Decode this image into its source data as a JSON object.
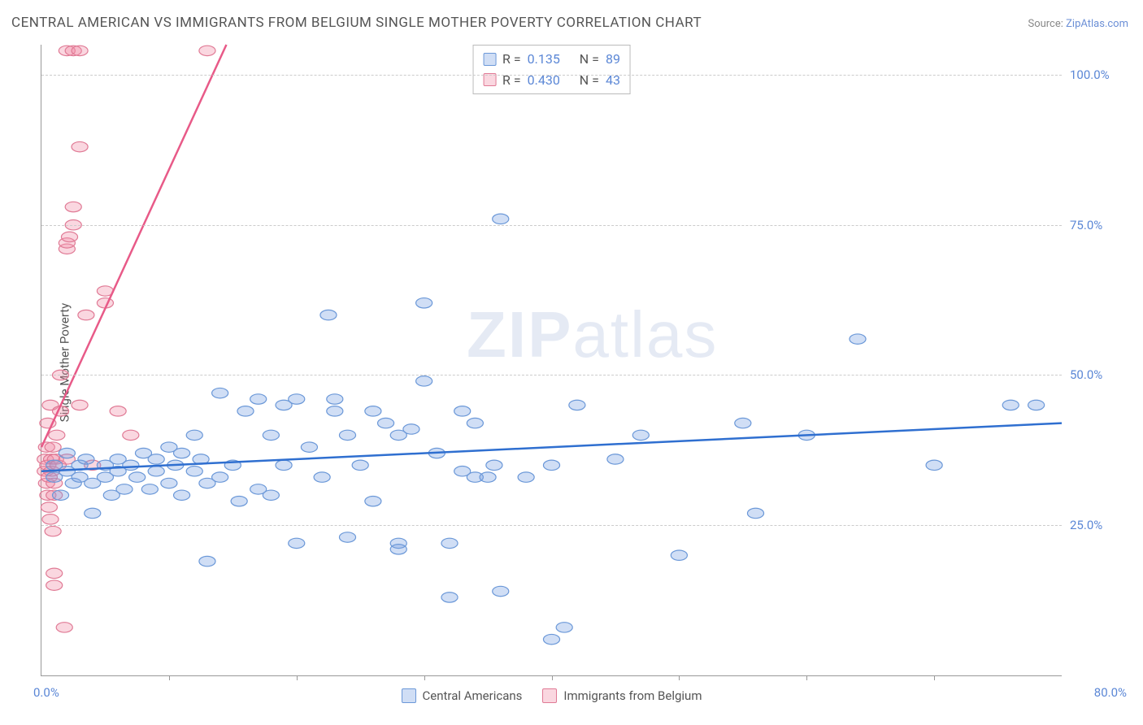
{
  "title": "CENTRAL AMERICAN VS IMMIGRANTS FROM BELGIUM SINGLE MOTHER POVERTY CORRELATION CHART",
  "source_prefix": "Source: ",
  "source_name": "ZipAtlas.com",
  "ylabel": "Single Mother Poverty",
  "watermark_bold": "ZIP",
  "watermark_light": "atlas",
  "chart": {
    "type": "scatter",
    "xlim": [
      0,
      80
    ],
    "ylim": [
      0,
      105
    ],
    "x_tick_start": "0.0%",
    "x_tick_end": "80.0%",
    "x_minor_ticks_pct": [
      10,
      20,
      30,
      40,
      50,
      60,
      70
    ],
    "y_ticks": [
      {
        "value": 25,
        "label": "25.0%"
      },
      {
        "value": 50,
        "label": "50.0%"
      },
      {
        "value": 75,
        "label": "75.0%"
      },
      {
        "value": 100,
        "label": "100.0%"
      }
    ],
    "grid_color": "#cccccc",
    "axis_color": "#999999",
    "background_color": "#ffffff",
    "tick_label_color": "#5b87d6",
    "marker_radius": 8,
    "marker_stroke_width": 1.2,
    "trend_line_width": 2.5,
    "series": [
      {
        "name": "Central Americans",
        "fill": "rgba(120,160,225,0.35)",
        "stroke": "#6b98d8",
        "line_color": "#2f6fd0",
        "trend": {
          "x1": 0,
          "y1": 34,
          "x2": 80,
          "y2": 42
        },
        "stats": {
          "R_label": "R = ",
          "R": "0.135",
          "N_label": "N = ",
          "N": "89"
        },
        "points": [
          [
            1,
            33
          ],
          [
            1,
            35
          ],
          [
            1.5,
            30
          ],
          [
            2,
            34
          ],
          [
            2,
            37
          ],
          [
            2.5,
            32
          ],
          [
            3,
            35
          ],
          [
            3,
            33
          ],
          [
            3.5,
            36
          ],
          [
            4,
            32
          ],
          [
            4,
            27
          ],
          [
            5,
            33
          ],
          [
            5,
            35
          ],
          [
            5.5,
            30
          ],
          [
            6,
            34
          ],
          [
            6,
            36
          ],
          [
            6.5,
            31
          ],
          [
            7,
            35
          ],
          [
            7.5,
            33
          ],
          [
            8,
            37
          ],
          [
            8.5,
            31
          ],
          [
            9,
            34
          ],
          [
            9,
            36
          ],
          [
            10,
            32
          ],
          [
            10,
            38
          ],
          [
            10.5,
            35
          ],
          [
            11,
            30
          ],
          [
            11,
            37
          ],
          [
            12,
            34
          ],
          [
            12,
            40
          ],
          [
            12.5,
            36
          ],
          [
            13,
            19
          ],
          [
            13,
            32
          ],
          [
            14,
            33
          ],
          [
            14,
            47
          ],
          [
            15,
            35
          ],
          [
            15.5,
            29
          ],
          [
            16,
            44
          ],
          [
            17,
            31
          ],
          [
            17,
            46
          ],
          [
            18,
            30
          ],
          [
            18,
            40
          ],
          [
            19,
            35
          ],
          [
            19,
            45
          ],
          [
            20,
            22
          ],
          [
            20,
            46
          ],
          [
            21,
            38
          ],
          [
            22,
            33
          ],
          [
            22.5,
            60
          ],
          [
            23,
            46
          ],
          [
            23,
            44
          ],
          [
            24,
            40
          ],
          [
            24,
            23
          ],
          [
            25,
            35
          ],
          [
            26,
            44
          ],
          [
            26,
            29
          ],
          [
            27,
            42
          ],
          [
            28,
            22
          ],
          [
            28,
            21
          ],
          [
            28,
            40
          ],
          [
            29,
            41
          ],
          [
            30,
            49
          ],
          [
            30,
            62
          ],
          [
            31,
            37
          ],
          [
            32,
            22
          ],
          [
            32,
            13
          ],
          [
            33,
            34
          ],
          [
            33,
            44
          ],
          [
            34,
            33
          ],
          [
            34,
            42
          ],
          [
            35,
            33
          ],
          [
            35.5,
            35
          ],
          [
            36,
            76
          ],
          [
            36,
            14
          ],
          [
            38,
            33
          ],
          [
            40,
            35
          ],
          [
            40,
            6
          ],
          [
            41,
            8
          ],
          [
            42,
            45
          ],
          [
            45,
            36
          ],
          [
            47,
            40
          ],
          [
            50,
            20
          ],
          [
            55,
            42
          ],
          [
            56,
            27
          ],
          [
            60,
            40
          ],
          [
            64,
            56
          ],
          [
            70,
            35
          ],
          [
            76,
            45
          ],
          [
            78,
            45
          ]
        ]
      },
      {
        "name": "Immigrants from Belgium",
        "fill": "rgba(240,140,165,0.35)",
        "stroke": "#e07a95",
        "line_color": "#e85a88",
        "trend": {
          "x1": 0,
          "y1": 38,
          "x2": 14.5,
          "y2": 105
        },
        "stats": {
          "R_label": "R = ",
          "R": "0.430",
          "N_label": "N = ",
          "N": "43"
        },
        "points": [
          [
            0.3,
            34
          ],
          [
            0.3,
            36
          ],
          [
            0.4,
            32
          ],
          [
            0.4,
            38
          ],
          [
            0.5,
            30
          ],
          [
            0.5,
            42
          ],
          [
            0.5,
            35
          ],
          [
            0.6,
            33
          ],
          [
            0.6,
            28
          ],
          [
            0.7,
            45
          ],
          [
            0.7,
            26
          ],
          [
            0.8,
            34
          ],
          [
            0.8,
            36
          ],
          [
            0.9,
            24
          ],
          [
            0.9,
            38
          ],
          [
            1,
            32
          ],
          [
            1,
            30
          ],
          [
            1,
            17
          ],
          [
            1,
            15
          ],
          [
            1.1,
            36
          ],
          [
            1.2,
            40
          ],
          [
            1.3,
            35
          ],
          [
            1.5,
            50
          ],
          [
            1.5,
            44
          ],
          [
            1.8,
            8
          ],
          [
            2,
            36
          ],
          [
            2,
            71
          ],
          [
            2,
            72
          ],
          [
            2.2,
            73
          ],
          [
            2.5,
            75
          ],
          [
            2.5,
            78
          ],
          [
            3,
            88
          ],
          [
            3,
            45
          ],
          [
            3.5,
            60
          ],
          [
            4,
            35
          ],
          [
            5,
            62
          ],
          [
            5,
            64
          ],
          [
            6,
            44
          ],
          [
            7,
            40
          ],
          [
            2,
            104
          ],
          [
            2.5,
            104
          ],
          [
            3,
            104
          ],
          [
            13,
            104
          ]
        ]
      }
    ]
  },
  "legend": {
    "series1": "Central Americans",
    "series2": "Immigrants from Belgium"
  }
}
